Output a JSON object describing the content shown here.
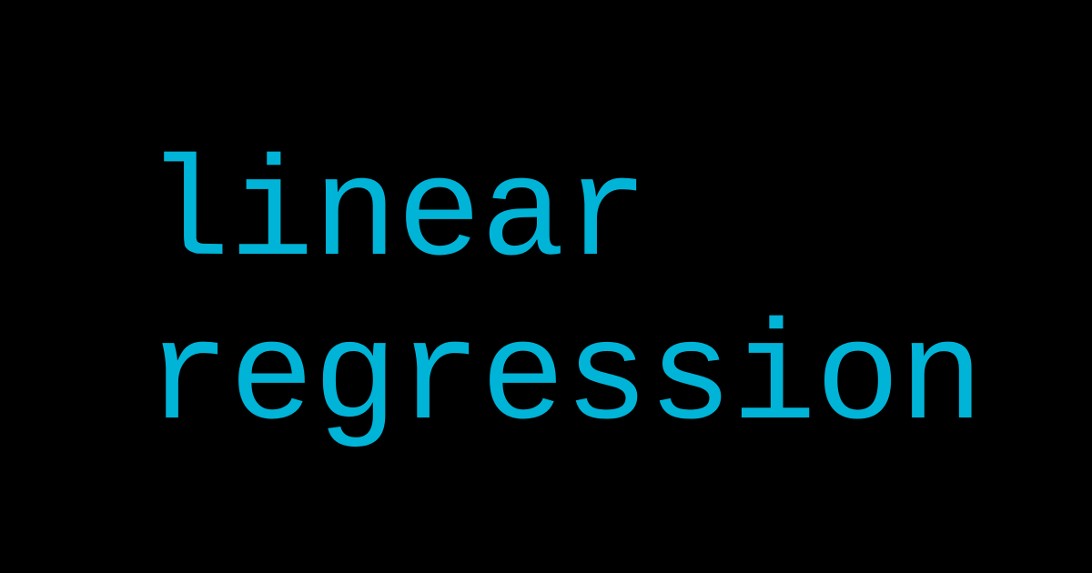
{
  "title": {
    "line1": "linear",
    "line2": "regression"
  },
  "colors": {
    "background": "#000000",
    "text": "#00b4d8"
  }
}
